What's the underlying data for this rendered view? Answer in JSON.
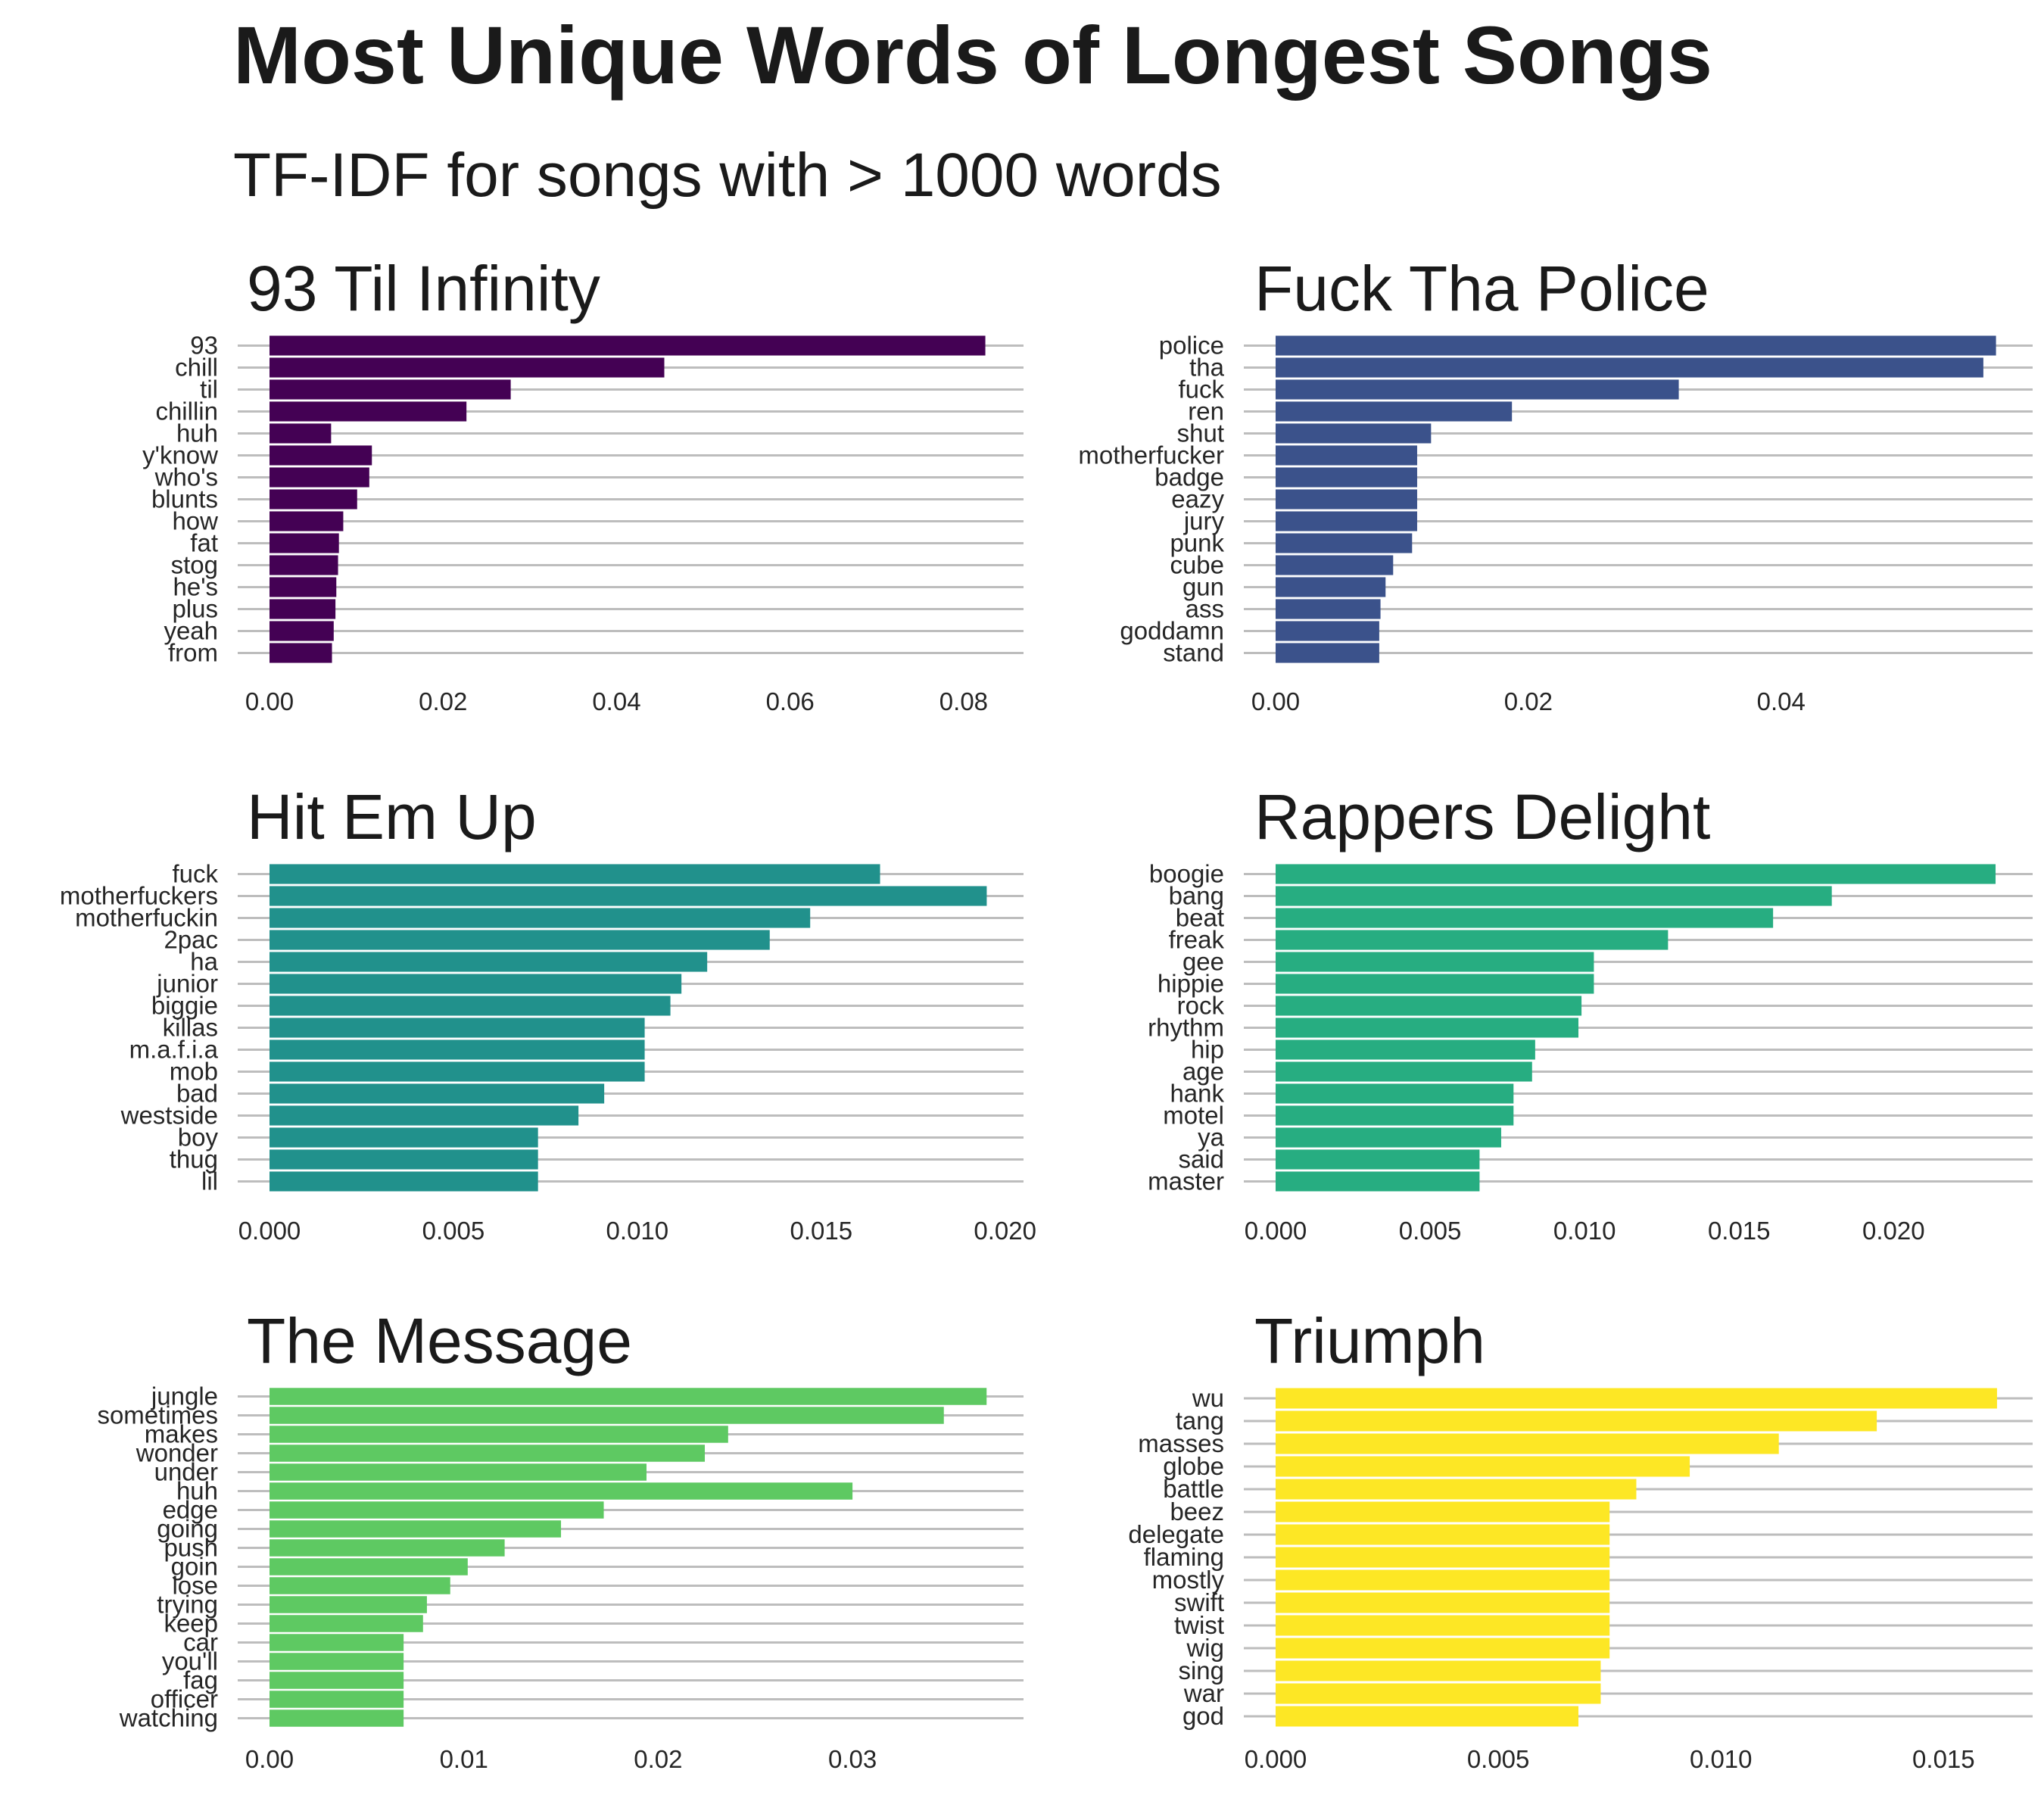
{
  "title": "Most Unique Words of Longest Songs",
  "subtitle": "TF-IDF for songs with > 1000 words",
  "chart_data": [
    {
      "type": "bar",
      "orientation": "horizontal",
      "title": "93 Til Infinity",
      "color": "#440154",
      "categories": [
        "93",
        "chill",
        "til",
        "chillin",
        "huh",
        "y'know",
        "who's",
        "blunts",
        "how",
        "fat",
        "stog",
        "he's",
        "plus",
        "yeah",
        "from"
      ],
      "values": [
        0.0825,
        0.0455,
        0.0278,
        0.0227,
        0.0071,
        0.0118,
        0.0115,
        0.0101,
        0.0085,
        0.008,
        0.0079,
        0.0077,
        0.0076,
        0.0074,
        0.0072
      ],
      "xticks": [
        "0.00",
        "0.02",
        "0.04",
        "0.06",
        "0.08"
      ],
      "xtick_values": [
        0,
        0.02,
        0.04,
        0.06,
        0.08
      ],
      "xlim": [
        0,
        0.0869
      ],
      "grid": true
    },
    {
      "type": "bar",
      "orientation": "horizontal",
      "title": "Fuck Tha Police",
      "color": "#3b528b",
      "categories": [
        "police",
        "tha",
        "fuck",
        "ren",
        "shut",
        "motherfucker",
        "badge",
        "eazy",
        "jury",
        "punk",
        "cube",
        "gun",
        "ass",
        "goddamn",
        "stand"
      ],
      "values": [
        0.057,
        0.056,
        0.0319,
        0.0187,
        0.0123,
        0.0112,
        0.0112,
        0.0112,
        0.0112,
        0.0108,
        0.0093,
        0.0087,
        0.0083,
        0.0082,
        0.0082
      ],
      "xticks": [
        "0.00",
        "0.02",
        "0.04"
      ],
      "xtick_values": [
        0,
        0.02,
        0.04
      ],
      "xlim": [
        0,
        0.0599
      ],
      "grid": true
    },
    {
      "type": "bar",
      "orientation": "horizontal",
      "title": "Hit Em Up",
      "color": "#21918c",
      "categories": [
        "fuck",
        "motherfuckers",
        "motherfuckin",
        "2pac",
        "ha",
        "junior",
        "biggie",
        "killas",
        "m.a.f.i.a",
        "mob",
        "bad",
        "westside",
        "boy",
        "thug",
        "lil"
      ],
      "values": [
        0.0166,
        0.0195,
        0.0147,
        0.0136,
        0.0119,
        0.0112,
        0.0109,
        0.0102,
        0.0102,
        0.0102,
        0.0091,
        0.0084,
        0.0073,
        0.0073,
        0.0073
      ],
      "xticks": [
        "0.000",
        "0.005",
        "0.010",
        "0.015",
        "0.020"
      ],
      "xtick_values": [
        0,
        0.005,
        0.01,
        0.015,
        0.02
      ],
      "xlim": [
        0,
        0.0205
      ],
      "grid": true
    },
    {
      "type": "bar",
      "orientation": "horizontal",
      "title": "Rappers Delight",
      "color": "#27ad81",
      "categories": [
        "boogie",
        "bang",
        "beat",
        "freak",
        "gee",
        "hippie",
        "rock",
        "rhythm",
        "hip",
        "age",
        "hank",
        "motel",
        "ya",
        "said",
        "master"
      ],
      "values": [
        0.0233,
        0.018,
        0.0161,
        0.0127,
        0.0103,
        0.0103,
        0.0099,
        0.0098,
        0.0084,
        0.0083,
        0.0077,
        0.0077,
        0.0073,
        0.0066,
        0.0066
      ],
      "xticks": [
        "0.000",
        "0.005",
        "0.010",
        "0.015",
        "0.020"
      ],
      "xtick_values": [
        0,
        0.005,
        0.01,
        0.015,
        0.02
      ],
      "xlim": [
        0,
        0.0245
      ],
      "grid": true
    },
    {
      "type": "bar",
      "orientation": "horizontal",
      "title": "The Message",
      "color": "#5ec962",
      "categories": [
        "jungle",
        "sometimes",
        "makes",
        "wonder",
        "under",
        "huh",
        "edge",
        "going",
        "push",
        "goin",
        "lose",
        "trying",
        "keep",
        "car",
        "you'll",
        "fag",
        "officer",
        "watching"
      ],
      "values": [
        0.0369,
        0.0347,
        0.0236,
        0.0224,
        0.0194,
        0.03,
        0.0172,
        0.015,
        0.0121,
        0.0102,
        0.0093,
        0.0081,
        0.0079,
        0.0069,
        0.0069,
        0.0069,
        0.0069,
        0.0069
      ],
      "xticks": [
        "0.00",
        "0.01",
        "0.02",
        "0.03"
      ],
      "xtick_values": [
        0,
        0.01,
        0.02,
        0.03
      ],
      "xlim": [
        0,
        0.0388
      ],
      "grid": true
    },
    {
      "type": "bar",
      "orientation": "horizontal",
      "title": "Triumph",
      "color": "#fde725",
      "categories": [
        "wu",
        "tang",
        "masses",
        "globe",
        "battle",
        "beez",
        "delegate",
        "flaming",
        "mostly",
        "swift",
        "twist",
        "wig",
        "sing",
        "war",
        "god"
      ],
      "values": [
        0.0162,
        0.0135,
        0.0113,
        0.0093,
        0.0081,
        0.0075,
        0.0075,
        0.0075,
        0.0075,
        0.0075,
        0.0075,
        0.0075,
        0.0073,
        0.0073,
        0.0068
      ],
      "xticks": [
        "0.000",
        "0.005",
        "0.010",
        "0.015"
      ],
      "xtick_values": [
        0,
        0.005,
        0.01,
        0.015
      ],
      "xlim": [
        0,
        0.017
      ],
      "grid": true
    }
  ]
}
